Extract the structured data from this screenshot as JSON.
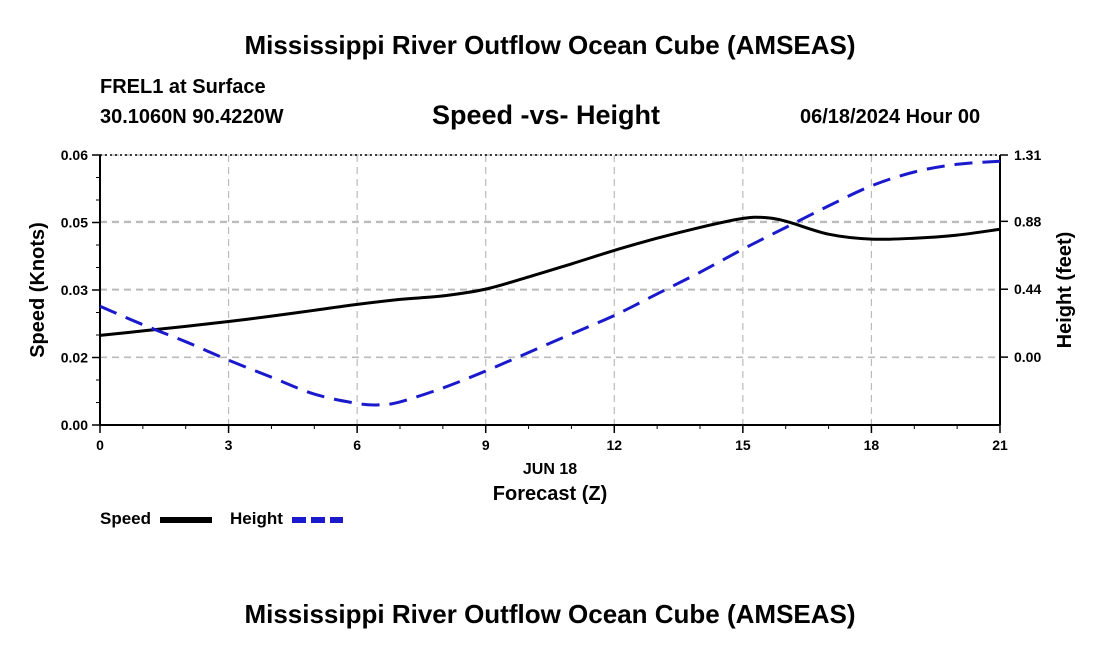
{
  "header": {
    "title": "Mississippi River Outflow Ocean Cube (AMSEAS)",
    "station": "FREL1 at Surface",
    "coordinates": "30.1060N  90.4220W",
    "subtitle": "Speed -vs- Height",
    "datetime": "06/18/2024 Hour 00"
  },
  "footer": {
    "title": "Mississippi River Outflow Ocean Cube (AMSEAS)"
  },
  "colors": {
    "speed": "#000000",
    "height": "#1a1acc",
    "grid": "#bbbbbb"
  },
  "chart_data": {
    "type": "line",
    "title": "Speed -vs- Height",
    "xlabel": "Forecast (Z)",
    "xlabel_date": "JUN 18",
    "ylabel": "Speed (Knots)",
    "y2label": "Height (feet)",
    "xlim": [
      0,
      21
    ],
    "ylim": [
      0.0,
      0.06
    ],
    "y2lim": [
      -0.44,
      1.31
    ],
    "x_ticks": [
      "0",
      "3",
      "6",
      "9",
      "12",
      "15",
      "18",
      "21"
    ],
    "y_ticks": [
      {
        "value": 0.0,
        "label": "0.00"
      },
      {
        "value": 0.015,
        "label": "0.02"
      },
      {
        "value": 0.03,
        "label": "0.03"
      },
      {
        "value": 0.045,
        "label": "0.05"
      },
      {
        "value": 0.06,
        "label": "0.06"
      }
    ],
    "y2_ticks": [
      {
        "value": 0.0,
        "label": "0.00"
      },
      {
        "value": 0.44,
        "label": "0.44"
      },
      {
        "value": 0.88,
        "label": "0.88"
      },
      {
        "value": 1.31,
        "label": "1.31"
      }
    ],
    "grid": true,
    "legend": "bottom-left",
    "series": [
      {
        "name": "Speed",
        "axis": "left",
        "style": "solid",
        "x": [
          0,
          1,
          2,
          3,
          4,
          5,
          6,
          7,
          8,
          9,
          10,
          11,
          12,
          13,
          14,
          15,
          15.5,
          16,
          17,
          18,
          19,
          20,
          21
        ],
        "y": [
          0.0199,
          0.0209,
          0.0219,
          0.023,
          0.0242,
          0.0255,
          0.0268,
          0.0279,
          0.0287,
          0.0302,
          0.0329,
          0.0358,
          0.0388,
          0.0415,
          0.0439,
          0.0459,
          0.0461,
          0.0453,
          0.0424,
          0.0413,
          0.0415,
          0.0422,
          0.0435
        ]
      },
      {
        "name": "Height",
        "axis": "right",
        "style": "dashed",
        "x": [
          0,
          1,
          2,
          3,
          4,
          5,
          6,
          6.5,
          7,
          8,
          9,
          10,
          11,
          12,
          13,
          14,
          15,
          16,
          17,
          18,
          19,
          20,
          21
        ],
        "y": [
          0.33,
          0.21,
          0.1,
          -0.02,
          -0.13,
          -0.24,
          -0.3,
          -0.31,
          -0.29,
          -0.2,
          -0.09,
          0.03,
          0.15,
          0.27,
          0.41,
          0.55,
          0.7,
          0.84,
          0.98,
          1.11,
          1.2,
          1.25,
          1.27
        ]
      }
    ]
  }
}
